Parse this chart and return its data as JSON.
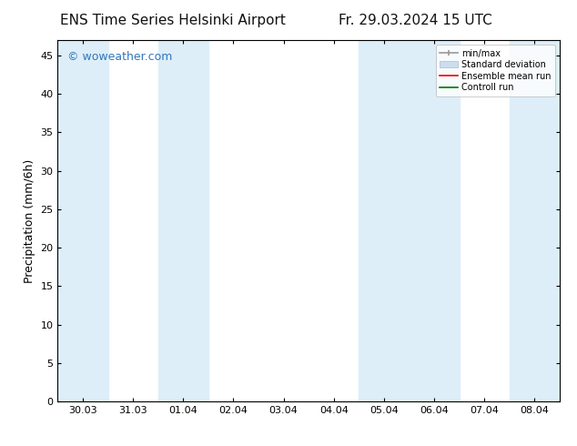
{
  "title_left": "ENS Time Series Helsinki Airport",
  "title_right": "Fr. 29.03.2024 15 UTC",
  "ylabel": "Precipitation (mm/6h)",
  "ylim": [
    0,
    47
  ],
  "yticks": [
    0,
    5,
    10,
    15,
    20,
    25,
    30,
    35,
    40,
    45
  ],
  "x_labels": [
    "30.03",
    "31.03",
    "01.04",
    "02.04",
    "03.04",
    "04.04",
    "05.04",
    "06.04",
    "07.04",
    "08.04"
  ],
  "x_positions": [
    0,
    1,
    2,
    3,
    4,
    5,
    6,
    7,
    8,
    9
  ],
  "xlim": [
    -0.5,
    9.5
  ],
  "background_color": "#ffffff",
  "plot_bg_color": "#ffffff",
  "shaded_bands": [
    {
      "x_start": -0.5,
      "x_end": 0.5,
      "color": "#ddeef8"
    },
    {
      "x_start": 1.5,
      "x_end": 2.5,
      "color": "#ddeef8"
    },
    {
      "x_start": 5.5,
      "x_end": 7.5,
      "color": "#ddeef8"
    },
    {
      "x_start": 8.5,
      "x_end": 9.5,
      "color": "#ddeef8"
    }
  ],
  "watermark": "© woweather.com",
  "watermark_color": "#3377bb",
  "legend_entries": [
    "min/max",
    "Standard deviation",
    "Ensemble mean run",
    "Controll run"
  ],
  "legend_colors": [
    "#999999",
    "#bbccdd",
    "#ee0000",
    "#007700"
  ],
  "title_fontsize": 11,
  "tick_fontsize": 8,
  "ylabel_fontsize": 9,
  "watermark_fontsize": 9
}
